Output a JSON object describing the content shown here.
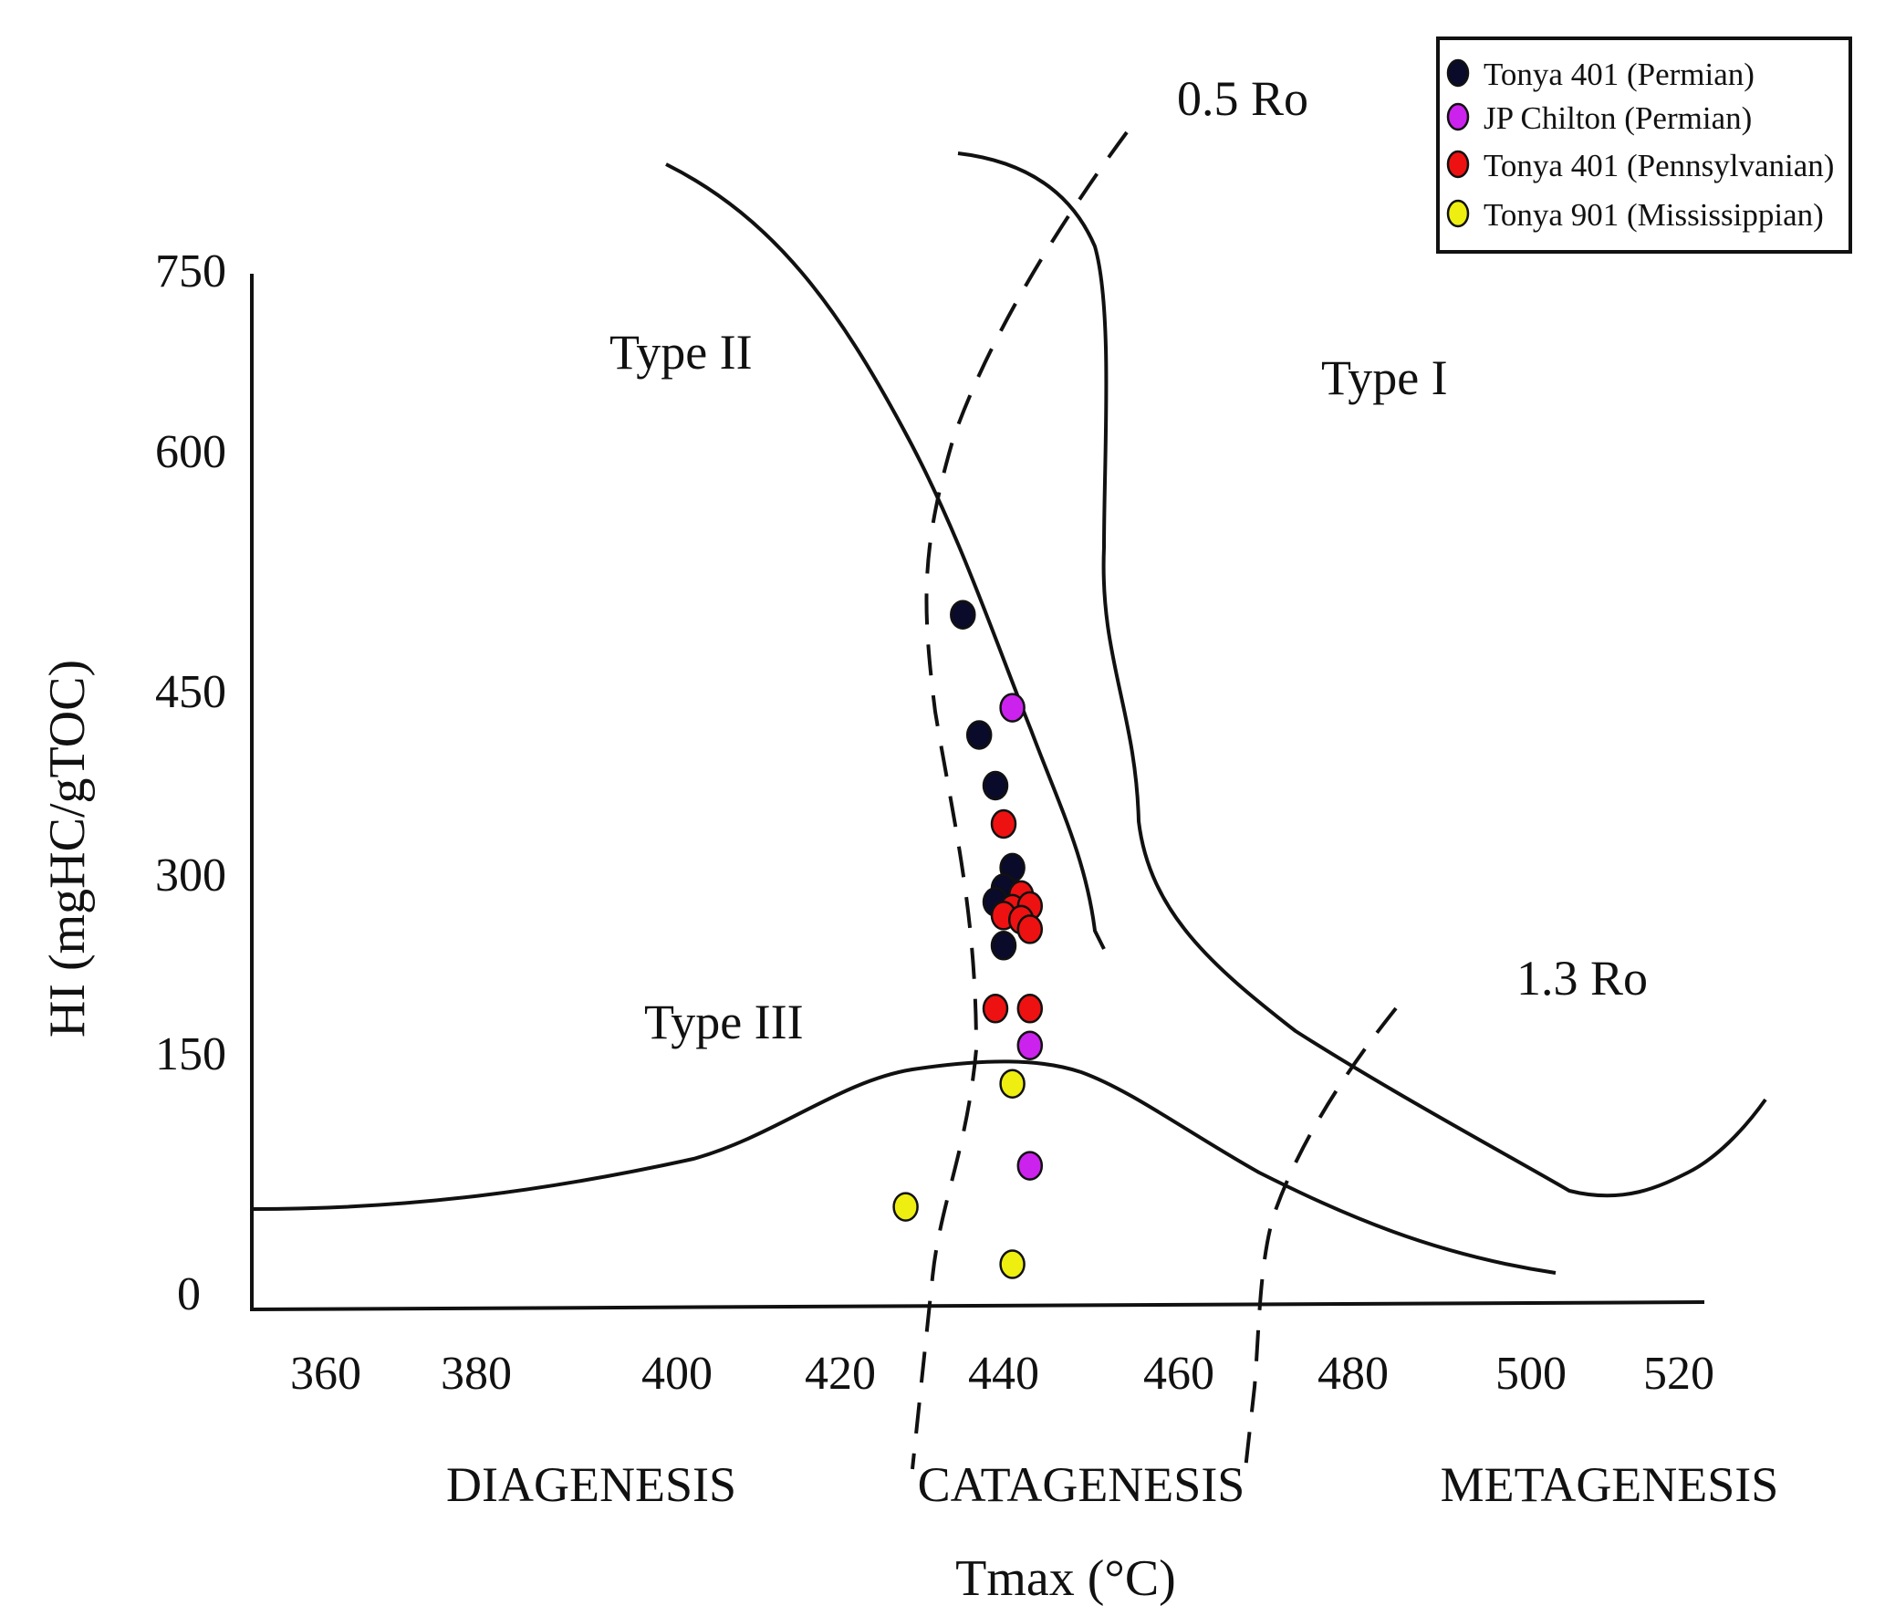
{
  "chart_data": {
    "type": "scatter",
    "title": "",
    "xlabel": "Tmax (°C)",
    "ylabel": "HI (mgHC/gTOC)",
    "xlim": [
      350,
      530
    ],
    "ylim": [
      0,
      750
    ],
    "x_ticks": [
      360,
      380,
      400,
      420,
      440,
      460,
      480,
      500,
      520
    ],
    "y_ticks": [
      0,
      150,
      300,
      450,
      600,
      750
    ],
    "zones": [
      "DIAGENESIS",
      "CATAGENESIS",
      "METAGENESIS"
    ],
    "annotations": [
      {
        "text": "Type II",
        "x": 402,
        "y": 680
      },
      {
        "text": "Type I",
        "x": 484,
        "y": 662
      },
      {
        "text": "Type III",
        "x": 407,
        "y": 165
      },
      {
        "text": "0.5 Ro",
        "x": 466,
        "y": 885
      },
      {
        "text": "1.3 Ro",
        "x": 490,
        "y": 205
      }
    ],
    "series": [
      {
        "name": "Tonya 401 (Permian)",
        "color": "#0a0a2a",
        "points": [
          [
            435,
            498
          ],
          [
            437,
            410
          ],
          [
            439,
            373
          ],
          [
            441,
            313
          ],
          [
            440,
            298
          ],
          [
            439,
            288
          ],
          [
            440,
            256
          ]
        ]
      },
      {
        "name": "JP Chilton (Permian)",
        "color": "#cc22ee",
        "points": [
          [
            441,
            430
          ],
          [
            443,
            183
          ],
          [
            443,
            95
          ]
        ]
      },
      {
        "name": "Tonya 401 (Pennsylvanian)",
        "color": "#ee1111",
        "points": [
          [
            440,
            345
          ],
          [
            442,
            293
          ],
          [
            441,
            283
          ],
          [
            443,
            285
          ],
          [
            440,
            278
          ],
          [
            442,
            275
          ],
          [
            443,
            268
          ],
          [
            439,
            210
          ],
          [
            443,
            210
          ]
        ]
      },
      {
        "name": "Tonya 901 (Mississippian)",
        "color": "#eeee11",
        "points": [
          [
            441,
            155
          ],
          [
            428,
            65
          ],
          [
            441,
            23
          ]
        ]
      }
    ]
  }
}
